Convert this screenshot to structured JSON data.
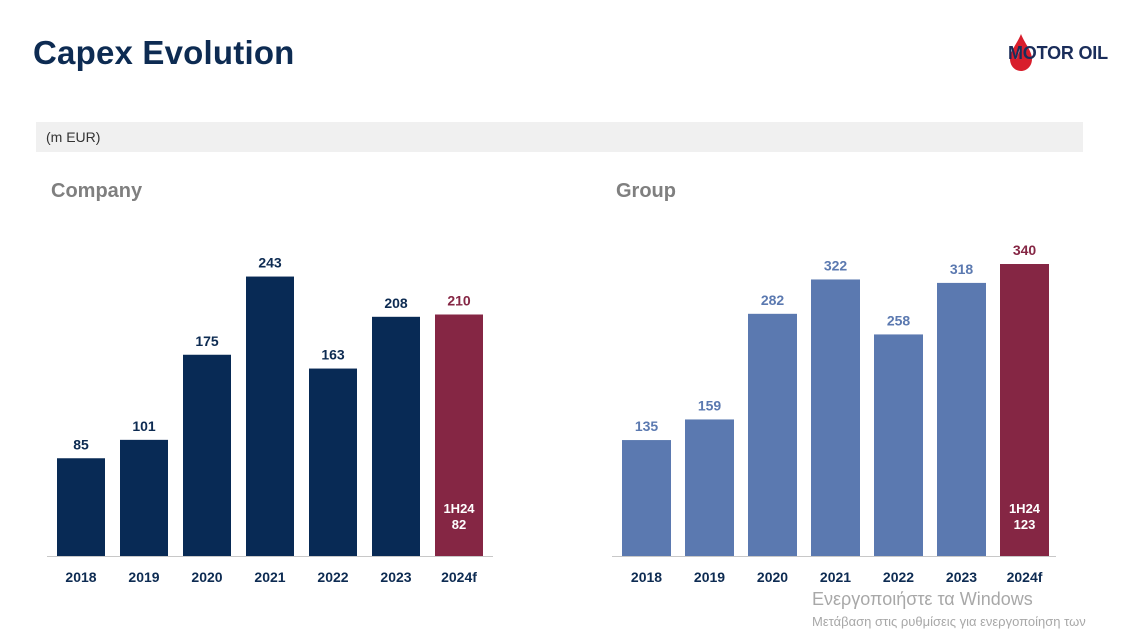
{
  "title": "Capex Evolution",
  "logo": {
    "text": "MOTOR OIL"
  },
  "unit": "(m EUR)",
  "colors": {
    "navy": "#082a55",
    "steel_blue": "#5b79b0",
    "maroon": "#852644",
    "baseline": "#c8c8c8"
  },
  "chart_data": [
    {
      "type": "bar",
      "title": "Company",
      "categories": [
        "2018",
        "2019",
        "2020",
        "2021",
        "2022",
        "2023",
        "2024f"
      ],
      "values": [
        85,
        101,
        175,
        243,
        163,
        208,
        210
      ],
      "highlight_index": 6,
      "highlight_inner_label": [
        "1H24",
        "82"
      ],
      "ylim": [
        0,
        260
      ],
      "grid": false
    },
    {
      "type": "bar",
      "title": "Group",
      "categories": [
        "2018",
        "2019",
        "2020",
        "2021",
        "2022",
        "2023",
        "2024f"
      ],
      "values": [
        135,
        159,
        282,
        322,
        258,
        318,
        340
      ],
      "highlight_index": 6,
      "highlight_inner_label": [
        "1H24",
        "123"
      ],
      "ylim": [
        0,
        360
      ],
      "grid": false
    }
  ],
  "watermark": {
    "line1": "Ενεργοποιήστε τα Windows",
    "line2": "Μετάβαση στις ρυθμίσεις για ενεργοποίηση των"
  }
}
